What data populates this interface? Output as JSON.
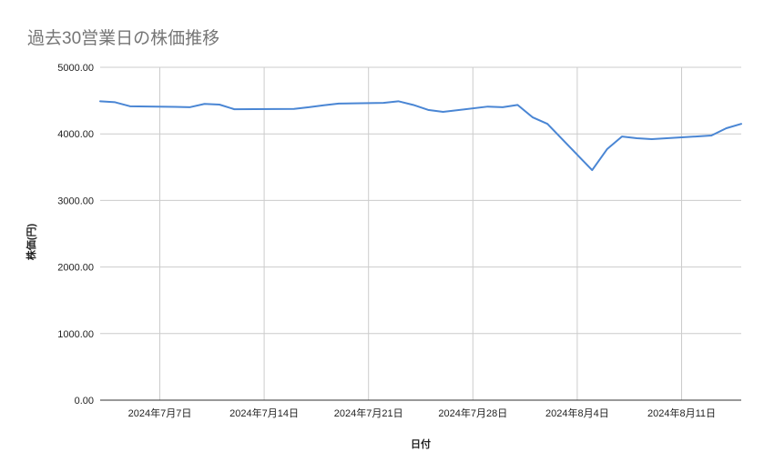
{
  "chart_data": {
    "type": "line",
    "title": "過去30営業日の株価推移",
    "xlabel": "日付",
    "ylabel": "株価(円)",
    "x": [
      "2024-07-03",
      "2024-07-04",
      "2024-07-05",
      "2024-07-08",
      "2024-07-09",
      "2024-07-10",
      "2024-07-11",
      "2024-07-12",
      "2024-07-16",
      "2024-07-17",
      "2024-07-18",
      "2024-07-19",
      "2024-07-22",
      "2024-07-23",
      "2024-07-24",
      "2024-07-25",
      "2024-07-26",
      "2024-07-29",
      "2024-07-30",
      "2024-07-31",
      "2024-08-01",
      "2024-08-02",
      "2024-08-05",
      "2024-08-06",
      "2024-08-07",
      "2024-08-08",
      "2024-08-09",
      "2024-08-13",
      "2024-08-14",
      "2024-08-15"
    ],
    "series": [
      {
        "values": [
          4490,
          4475,
          4415,
          4405,
          4400,
          4450,
          4440,
          4370,
          4375,
          4400,
          4430,
          4455,
          4465,
          4490,
          4435,
          4360,
          4330,
          4410,
          4400,
          4435,
          4250,
          4150,
          3455,
          3770,
          3960,
          3935,
          3920,
          3975,
          4085,
          4150
        ]
      }
    ],
    "xlim": [
      "2024-07-03",
      "2024-08-15"
    ],
    "ylim": [
      0,
      5000
    ],
    "yticks": [
      0,
      1000,
      2000,
      3000,
      4000,
      5000
    ],
    "ytick_labels": [
      "0.00",
      "1000.00",
      "2000.00",
      "3000.00",
      "4000.00",
      "5000.00"
    ],
    "xtick_labels": [
      "2024年7月7日",
      "2024年7月14日",
      "2024年7月21日",
      "2024年7月28日",
      "2024年8月4日",
      "2024年8月11日"
    ],
    "grid": true,
    "legend": "none",
    "colors": {
      "line": "#4a86d4",
      "grid": "#cccccc",
      "baseline": "#333333",
      "title": "#757575"
    }
  }
}
